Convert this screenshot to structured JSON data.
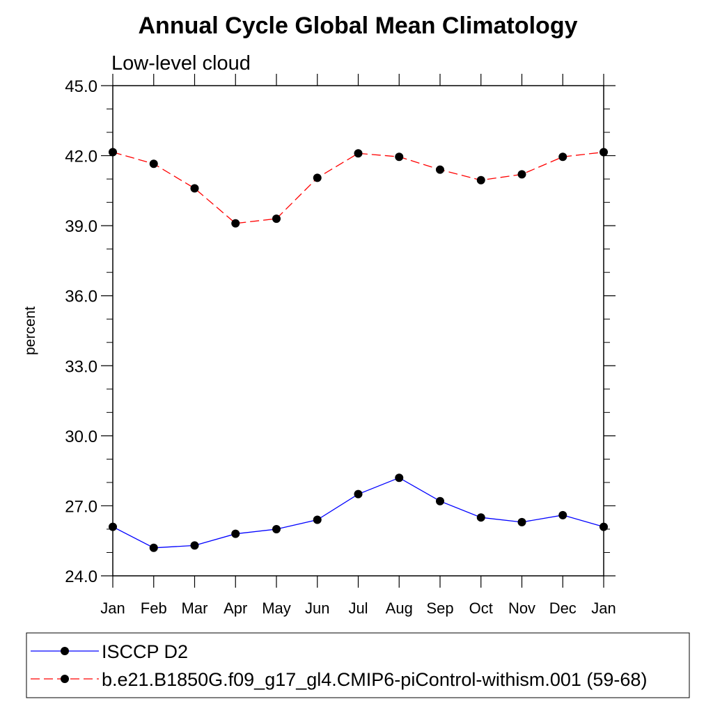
{
  "chart_data": {
    "type": "line",
    "title": "Annual Cycle Global Mean Climatology",
    "subtitle": "Low-level cloud",
    "xlabel": "",
    "ylabel": "percent",
    "ylim": [
      24.0,
      45.0
    ],
    "yticks": [
      "24.0",
      "27.0",
      "30.0",
      "33.0",
      "36.0",
      "39.0",
      "42.0",
      "45.0"
    ],
    "ytick_values": [
      24,
      27,
      30,
      33,
      36,
      39,
      42,
      45
    ],
    "categories": [
      "Jan",
      "Feb",
      "Mar",
      "Apr",
      "May",
      "Jun",
      "Jul",
      "Aug",
      "Sep",
      "Oct",
      "Nov",
      "Dec",
      "Jan"
    ],
    "grid": false,
    "legend_position": "bottom",
    "series": [
      {
        "name": "ISCCP D2",
        "color": "#0000ff",
        "dash": "solid",
        "marker": "filled-circle",
        "values": [
          26.1,
          25.2,
          25.3,
          25.8,
          26.0,
          26.4,
          27.5,
          28.2,
          27.2,
          26.5,
          26.3,
          26.6,
          26.1
        ]
      },
      {
        "name": "b.e21.B1850G.f09_g17_gl4.CMIP6-piControl-withism.001 (59-68)",
        "color": "#ff0000",
        "dash": "dashed",
        "marker": "filled-circle",
        "values": [
          42.15,
          41.65,
          40.6,
          39.1,
          39.3,
          41.05,
          42.1,
          41.95,
          41.4,
          40.95,
          41.2,
          41.95,
          42.15
        ]
      }
    ]
  }
}
